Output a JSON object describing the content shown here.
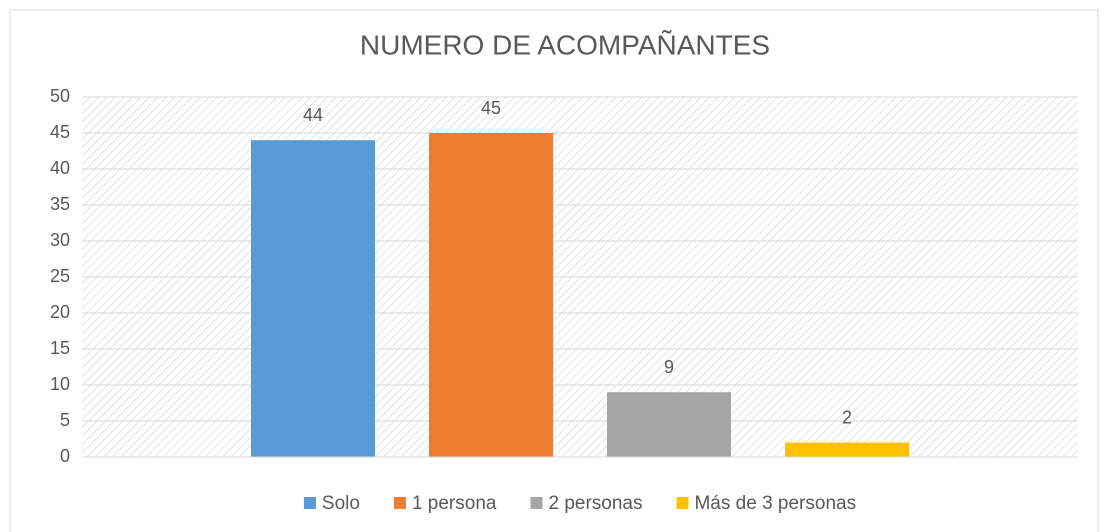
{
  "chart_data": {
    "type": "bar",
    "title": "NUMERO DE ACOMPAÑANTES",
    "categories": [
      null
    ],
    "series": [
      {
        "name": "Solo",
        "color": "#5b9bd5",
        "values": [
          44
        ]
      },
      {
        "name": "1 persona",
        "color": "#ed7d31",
        "values": [
          45
        ]
      },
      {
        "name": "2 personas",
        "color": "#a5a5a5",
        "values": [
          9
        ]
      },
      {
        "name": "Más de 3 personas",
        "color": "#ffc000",
        "values": [
          2
        ]
      }
    ],
    "ylim": [
      0,
      50
    ],
    "yticks": [
      0,
      5,
      10,
      15,
      20,
      25,
      30,
      35,
      40,
      45,
      50
    ],
    "grid": true,
    "legend": "bottom",
    "data_labels": true
  }
}
